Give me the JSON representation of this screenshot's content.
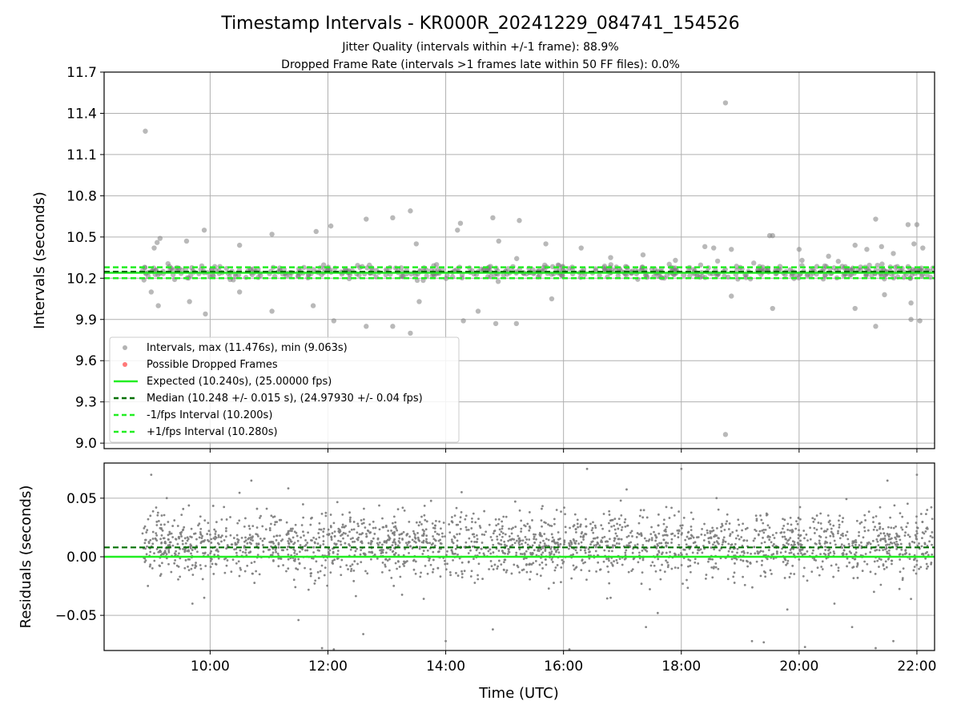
{
  "figure": {
    "title": "Timestamp Intervals - KR000R_20241229_084741_154526",
    "subtitle_line1": "Jitter Quality (intervals within +/-1 frame): 88.9%",
    "subtitle_line2": "Dropped Frame Rate (intervals >1 frames late within 50 FF files): 0.0%"
  },
  "colors": {
    "points": "#808080",
    "dropped": "#ff4040",
    "expected": "#22ee22",
    "median": "#007000",
    "grid": "#b0b0b0"
  },
  "chart_data": [
    {
      "type": "scatter",
      "ylabel": "Intervals (seconds)",
      "xlabel": "",
      "x_unit": "hours UTC",
      "xlim": [
        8.2,
        22.3
      ],
      "ylim": [
        8.96,
        11.7
      ],
      "yticks": [
        "9.0",
        "9.3",
        "9.6",
        "9.9",
        "10.2",
        "10.5",
        "10.8",
        "11.1",
        "11.4",
        "11.7"
      ],
      "ytick_values": [
        9.0,
        9.3,
        9.6,
        9.9,
        10.2,
        10.5,
        10.8,
        11.1,
        11.4,
        11.7
      ],
      "grid": true,
      "legend_placement": "lower-left",
      "legend": [
        "Intervals, max (11.476s), min (9.063s)",
        "Possible Dropped Frames",
        "Expected (10.240s), (25.00000 fps)",
        "Median (10.248 +/- 0.015 s), (24.97930 +/- 0.04 fps)",
        "-1/fps Interval (10.200s)",
        "+1/fps Interval (10.280s)"
      ],
      "series": [
        {
          "name": "Intervals, max (11.476s), min (9.063s)",
          "points": [
            [
              8.9,
              11.27
            ],
            [
              18.75,
              11.476
            ],
            [
              18.75,
              9.063
            ],
            [
              9.0,
              10.1
            ],
            [
              9.05,
              10.42
            ],
            [
              9.1,
              10.46
            ],
            [
              9.15,
              10.49
            ],
            [
              9.12,
              10.0
            ],
            [
              9.6,
              10.47
            ],
            [
              9.65,
              10.03
            ],
            [
              9.9,
              10.55
            ],
            [
              9.92,
              9.94
            ],
            [
              10.5,
              10.44
            ],
            [
              10.5,
              10.1
            ],
            [
              11.05,
              10.52
            ],
            [
              11.05,
              9.96
            ],
            [
              11.8,
              10.54
            ],
            [
              11.75,
              10.0
            ],
            [
              12.05,
              10.58
            ],
            [
              12.1,
              9.89
            ],
            [
              12.65,
              10.63
            ],
            [
              12.65,
              9.85
            ],
            [
              13.1,
              10.64
            ],
            [
              13.1,
              9.85
            ],
            [
              13.4,
              10.69
            ],
            [
              13.4,
              9.8
            ],
            [
              13.5,
              10.45
            ],
            [
              13.55,
              10.03
            ],
            [
              14.2,
              10.55
            ],
            [
              14.25,
              10.6
            ],
            [
              14.3,
              9.89
            ],
            [
              14.55,
              9.96
            ],
            [
              14.8,
              10.64
            ],
            [
              14.85,
              9.87
            ],
            [
              14.9,
              10.47
            ],
            [
              15.25,
              10.62
            ],
            [
              15.2,
              9.87
            ],
            [
              15.7,
              10.45
            ],
            [
              15.8,
              10.05
            ],
            [
              16.3,
              10.42
            ],
            [
              16.8,
              10.35
            ],
            [
              17.35,
              10.37
            ],
            [
              17.9,
              10.33
            ],
            [
              18.4,
              10.43
            ],
            [
              18.55,
              10.42
            ],
            [
              18.85,
              10.41
            ],
            [
              18.85,
              10.07
            ],
            [
              19.5,
              10.51
            ],
            [
              19.55,
              10.51
            ],
            [
              19.55,
              9.98
            ],
            [
              20.0,
              10.41
            ],
            [
              20.05,
              10.33
            ],
            [
              20.95,
              10.44
            ],
            [
              20.95,
              9.98
            ],
            [
              21.15,
              10.41
            ],
            [
              21.3,
              10.63
            ],
            [
              21.3,
              9.85
            ],
            [
              21.4,
              10.43
            ],
            [
              21.45,
              10.08
            ],
            [
              21.85,
              10.59
            ],
            [
              21.9,
              9.9
            ],
            [
              21.95,
              10.45
            ],
            [
              22.0,
              10.59
            ],
            [
              22.05,
              9.89
            ],
            [
              22.1,
              10.42
            ],
            [
              21.9,
              10.02
            ],
            [
              21.6,
              10.38
            ],
            [
              20.5,
              10.36
            ]
          ],
          "band": {
            "x_range": [
              8.85,
              22.3
            ],
            "center": 10.248,
            "spread": 0.05,
            "count": 560
          }
        }
      ],
      "lines": [
        {
          "name": "Expected (10.240s), (25.00000 fps)",
          "y": 10.24,
          "style": "solid"
        },
        {
          "name": "Median (10.248 +/- 0.015 s), (24.97930 +/- 0.04 fps)",
          "y": 10.248,
          "style": "dashed"
        },
        {
          "name": "-1/fps Interval (10.200s)",
          "y": 10.2,
          "style": "dashed"
        },
        {
          "name": "+1/fps Interval (10.280s)",
          "y": 10.28,
          "style": "dashed"
        }
      ]
    },
    {
      "type": "scatter",
      "ylabel": "Residuals (seconds)",
      "xlabel": "Time (UTC)",
      "x_unit": "hours UTC",
      "xlim": [
        8.2,
        22.3
      ],
      "ylim": [
        -0.08,
        0.08
      ],
      "yticks": [
        "−0.05",
        "0.00",
        "0.05"
      ],
      "ytick_values": [
        -0.05,
        0.0,
        0.05
      ],
      "xticks": [
        "10:00",
        "12:00",
        "14:00",
        "16:00",
        "18:00",
        "20:00",
        "22:00"
      ],
      "xtick_values": [
        10,
        12,
        14,
        16,
        18,
        20,
        22
      ],
      "grid": true,
      "series": [
        {
          "name": "",
          "band": {
            "x_range": [
              8.85,
              22.3
            ],
            "center": 0.01,
            "spread": 0.03,
            "count": 2400
          },
          "points": [
            [
              9.0,
              0.07
            ],
            [
              9.7,
              -0.04
            ],
            [
              9.9,
              -0.035
            ],
            [
              10.7,
              0.065
            ],
            [
              11.5,
              -0.054
            ],
            [
              11.9,
              -0.078
            ],
            [
              12.1,
              -0.079
            ],
            [
              12.6,
              -0.066
            ],
            [
              14.0,
              -0.072
            ],
            [
              14.8,
              -0.062
            ],
            [
              16.1,
              -0.079
            ],
            [
              16.4,
              0.075
            ],
            [
              16.8,
              -0.035
            ],
            [
              17.4,
              -0.06
            ],
            [
              17.6,
              -0.048
            ],
            [
              18.0,
              0.075
            ],
            [
              19.2,
              -0.072
            ],
            [
              19.4,
              -0.073
            ],
            [
              19.8,
              -0.045
            ],
            [
              20.1,
              -0.077
            ],
            [
              20.6,
              -0.04
            ],
            [
              20.9,
              -0.06
            ],
            [
              21.3,
              -0.078
            ],
            [
              21.6,
              -0.072
            ],
            [
              21.9,
              -0.036
            ],
            [
              22.0,
              0.07
            ],
            [
              21.5,
              0.065
            ]
          ]
        }
      ],
      "lines": [
        {
          "name": "Median",
          "y": 0.008,
          "style": "dashed"
        },
        {
          "name": "Expected",
          "y": 0.0,
          "style": "solid"
        }
      ]
    }
  ]
}
